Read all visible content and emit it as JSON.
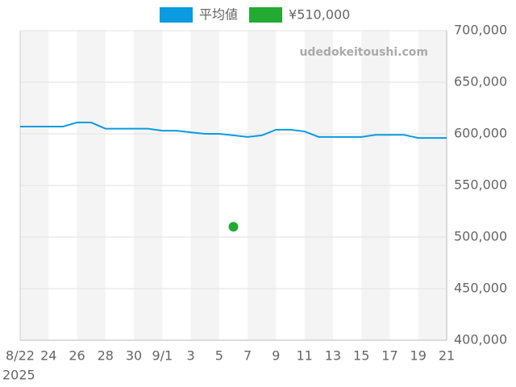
{
  "chart_data": {
    "type": "line",
    "categories": [
      "8/22",
      null,
      "24",
      null,
      "26",
      null,
      "28",
      null,
      "30",
      null,
      "9/1",
      null,
      "3",
      null,
      "5",
      null,
      "7",
      null,
      "9",
      null,
      "11",
      null,
      "13",
      null,
      "15",
      null,
      "17",
      null,
      "19",
      null,
      "21"
    ],
    "x_sublabel": "2025",
    "watermark": "udedokeitoushi.com",
    "series": [
      {
        "name": "平均値",
        "color": "#0a9be0",
        "type": "line",
        "values": [
          607000,
          607000,
          607000,
          607000,
          611000,
          611000,
          605000,
          605000,
          605000,
          605000,
          603000,
          603000,
          601500,
          600000,
          600000,
          598500,
          597000,
          598500,
          604000,
          604000,
          602300,
          597000,
          597000,
          597000,
          597000,
          599000,
          599000,
          599000,
          596000,
          596000,
          596000
        ]
      },
      {
        "name": "¥510,000",
        "color": "#22aa33",
        "type": "scatter",
        "values": [
          null,
          null,
          null,
          null,
          null,
          null,
          null,
          null,
          null,
          null,
          null,
          null,
          null,
          null,
          null,
          510000,
          null,
          null,
          null,
          null,
          null,
          null,
          null,
          null,
          null,
          null,
          null,
          null,
          null,
          null,
          null
        ]
      }
    ],
    "ylim": [
      400000,
      700000
    ],
    "yticks": [
      {
        "value": 400000,
        "label": "400,000"
      },
      {
        "value": 450000,
        "label": "450,000"
      },
      {
        "value": 500000,
        "label": "500,000"
      },
      {
        "value": 550000,
        "label": "550,000"
      },
      {
        "value": 600000,
        "label": "600,000"
      },
      {
        "value": 650000,
        "label": "650,000"
      },
      {
        "value": 700000,
        "label": "700,000"
      }
    ],
    "grid": true,
    "bands": true,
    "legend": "top"
  }
}
